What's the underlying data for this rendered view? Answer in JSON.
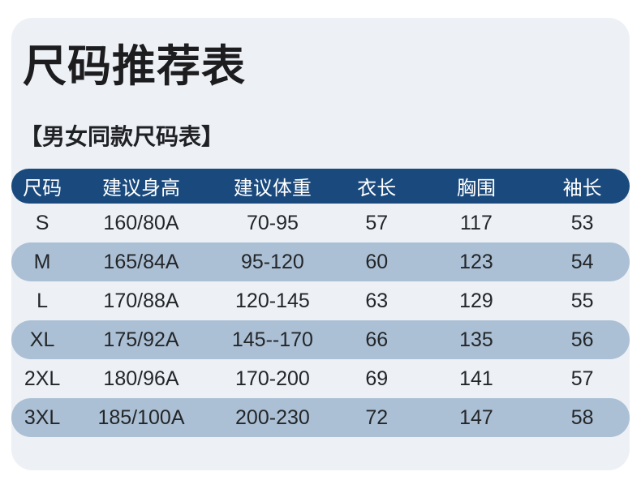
{
  "page": {
    "title": "尺码推荐表",
    "subtitle": "【男女同款尺码表】"
  },
  "colors": {
    "card_bg": "#edf1f6",
    "header_bg": "#1a4a7d",
    "header_text": "#ffffff",
    "row_alt_bg": "#acc0d5",
    "body_text": "#232629"
  },
  "chart_data": {
    "type": "table",
    "title": "尺码推荐表",
    "subtitle": "【男女同款尺码表】",
    "columns": [
      "尺码",
      "建议身高",
      "建议体重",
      "衣长",
      "胸围",
      "袖长"
    ],
    "rows": [
      [
        "S",
        "160/80A",
        "70-95",
        "57",
        "117",
        "53"
      ],
      [
        "M",
        "165/84A",
        "95-120",
        "60",
        "123",
        "54"
      ],
      [
        "L",
        "170/88A",
        "120-145",
        "63",
        "129",
        "55"
      ],
      [
        "XL",
        "175/92A",
        "145--170",
        "66",
        "135",
        "56"
      ],
      [
        "2XL",
        "180/96A",
        "170-200",
        "69",
        "141",
        "57"
      ],
      [
        "3XL",
        "185/100A",
        "200-230",
        "72",
        "147",
        "58"
      ]
    ],
    "layout": {
      "striped": "even rows (M, XL, 3XL) have pill-shaped blue background",
      "header_style": "pill-shaped dark navy bar, white text",
      "alignment": "all columns centered"
    }
  }
}
